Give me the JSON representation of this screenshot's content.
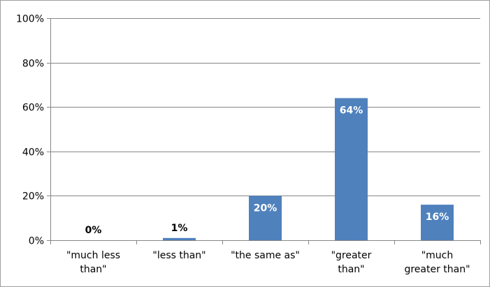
{
  "chart_data": {
    "type": "bar",
    "title": "",
    "xlabel": "",
    "ylabel": "",
    "categories": [
      [
        "\"much less",
        "than\""
      ],
      [
        "\"less than\""
      ],
      [
        "\"the same as\""
      ],
      [
        "\"greater",
        "than\""
      ],
      [
        "\"much",
        "greater than\""
      ]
    ],
    "values": [
      0,
      1,
      20,
      64,
      16
    ],
    "data_labels": [
      "0%",
      "1%",
      "20%",
      "64%",
      "16%"
    ],
    "ylim": [
      0,
      100
    ],
    "yticks": [
      0,
      20,
      40,
      60,
      80,
      100
    ],
    "ytick_labels": [
      "0%",
      "20%",
      "40%",
      "60%",
      "80%",
      "100%"
    ],
    "grid": true,
    "legend": "none",
    "colors": {
      "bar": "#4f81bd",
      "grid": "#868686",
      "axis": "#868686",
      "label_inside": "#ffffff",
      "label_outside": "#000000"
    }
  }
}
